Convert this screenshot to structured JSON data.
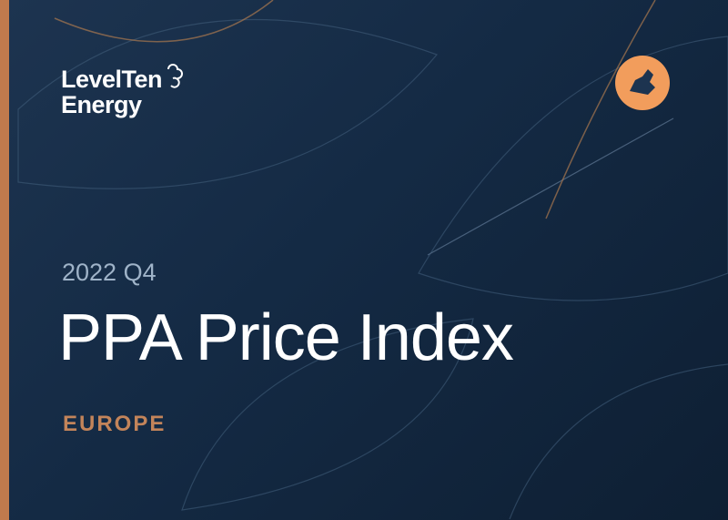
{
  "logo": {
    "line1": "LevelTen",
    "line2": "Energy"
  },
  "cover": {
    "period": "2022 Q4",
    "title": "PPA Price Index",
    "region": "EUROPE"
  }
}
